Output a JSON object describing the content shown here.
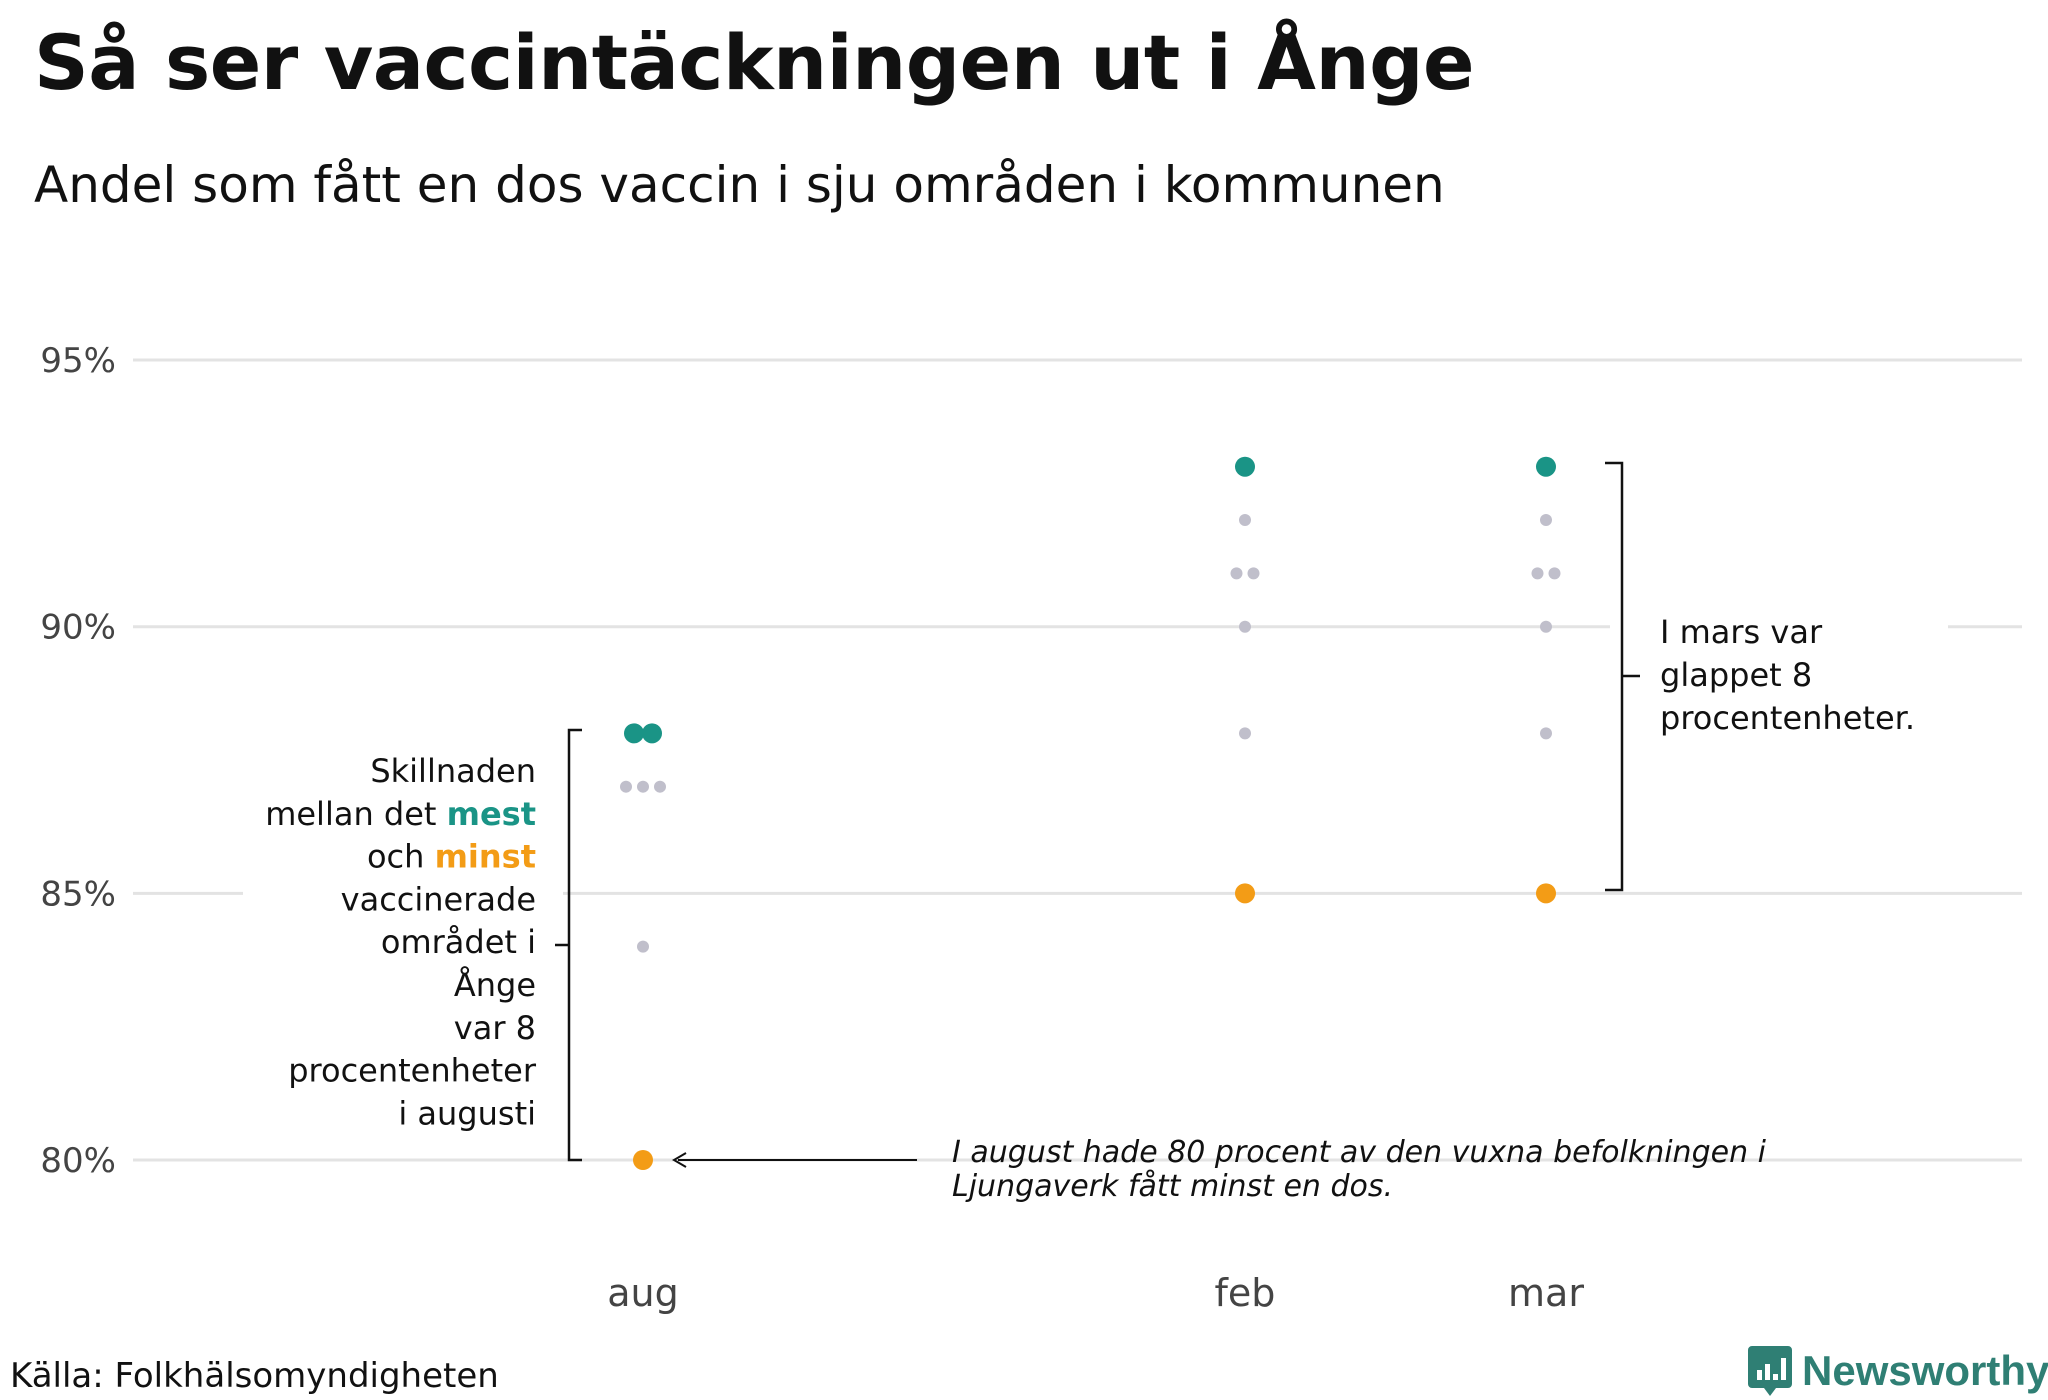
{
  "header": {
    "title": "Så ser vaccintäckningen ut i Ånge",
    "subtitle": "Andel som fått en dos vaccin i sju områden i kommunen"
  },
  "footer": {
    "source": "Källa: Folkhälsomyndigheten",
    "brand": "Newsworthy"
  },
  "colors": {
    "most": "#1a9486",
    "least": "#f39c16",
    "other": "#c0bfcb",
    "grid": "#e3e3e3",
    "brand": "#2f7f74"
  },
  "chart_data": {
    "type": "scatter",
    "categories": [
      "aug",
      "feb",
      "mar"
    ],
    "y_ticks": [
      "95%",
      "90%",
      "85%",
      "80%"
    ],
    "ylim": [
      78,
      96
    ],
    "grid": true,
    "series": [
      {
        "role": "most",
        "values": [
          [
            88,
            88
          ],
          [
            93
          ],
          [
            93
          ]
        ]
      },
      {
        "role": "other",
        "values": [
          [
            87,
            87,
            87,
            84
          ],
          [
            92,
            91,
            91,
            90,
            88
          ],
          [
            92,
            91,
            91,
            90,
            88
          ]
        ]
      },
      {
        "role": "least",
        "values": [
          [
            80
          ],
          [
            85
          ],
          [
            85
          ]
        ]
      }
    ],
    "annotations": {
      "left_lines": [
        [
          {
            "t": "Skillnaden"
          }
        ],
        [
          {
            "t": "mellan det "
          },
          {
            "t": "mest",
            "c": "most"
          }
        ],
        [
          {
            "t": "och "
          },
          {
            "t": "minst",
            "c": "least"
          }
        ],
        [
          {
            "t": "vaccinerade"
          }
        ],
        [
          {
            "t": "området i"
          }
        ],
        [
          {
            "t": "Ånge"
          }
        ],
        [
          {
            "t": "var 8 "
          }
        ],
        [
          {
            "t": "procentenheter"
          }
        ],
        [
          {
            "t": "i augusti"
          }
        ]
      ],
      "right_lines": [
        "I mars var",
        "glappet 8",
        "procentenheter."
      ],
      "bottom_lines": [
        "I august hade 80 procent av den vuxna befolkningen i",
        "Ljungaverk fått minst en dos."
      ]
    }
  }
}
